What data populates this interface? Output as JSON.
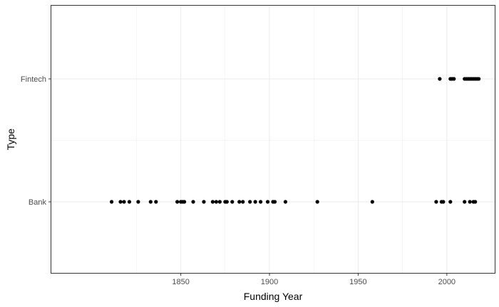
{
  "chart_data": {
    "type": "scatter",
    "xlabel": "Funding Year",
    "ylabel": "Type",
    "xlim": [
      1777,
      2027
    ],
    "x_ticks": [
      1850,
      1900,
      1950,
      2000
    ],
    "x_tick_labels": [
      "1850",
      "1900",
      "1950",
      "2000"
    ],
    "categories": [
      "Bank",
      "Fintech"
    ],
    "grid": true,
    "background": "#ffffff",
    "point_color": "#000000",
    "grid_color": "#ebebeb",
    "series": [
      {
        "category": "Bank",
        "x": [
          1811,
          1816,
          1818,
          1821,
          1826,
          1833,
          1836,
          1848,
          1850,
          1851,
          1852,
          1857,
          1863,
          1868,
          1870,
          1872,
          1875,
          1876,
          1879,
          1883,
          1885,
          1889,
          1892,
          1895,
          1899,
          1902,
          1903,
          1909,
          1927,
          1958,
          1994,
          1997,
          1998,
          2002,
          2010,
          2013,
          2015,
          2016
        ]
      },
      {
        "category": "Fintech",
        "x": [
          1996,
          2002,
          2003,
          2004,
          2010,
          2011,
          2012,
          2013,
          2014,
          2015,
          2016,
          2017,
          2018
        ]
      }
    ]
  }
}
